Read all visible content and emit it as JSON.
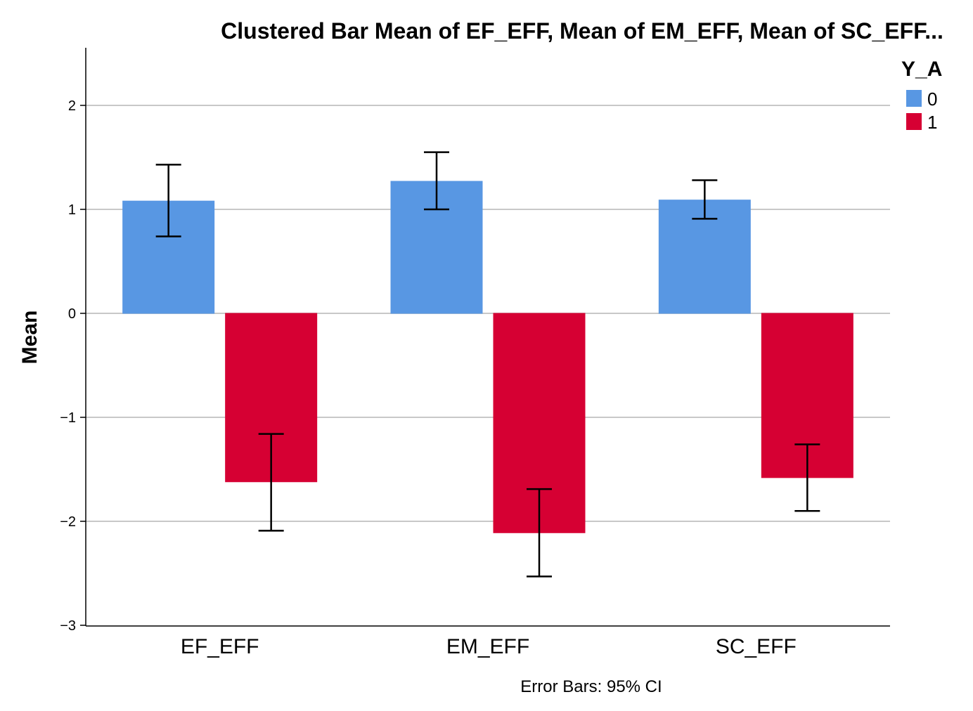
{
  "chart_data": {
    "type": "bar",
    "title": "Clustered Bar Mean of EF_EFF, Mean of EM_EFF, Mean of SC_EFF...",
    "xlabel": "",
    "ylabel": "Mean",
    "ylim": [
      -3,
      2.5
    ],
    "yticks": [
      2,
      1,
      0,
      -1,
      -2,
      -3
    ],
    "ytick_labels": [
      "2",
      "1",
      "0",
      "−1",
      "−2",
      "−3"
    ],
    "categories": [
      "EF_EFF",
      "EM_EFF",
      "SC_EFF"
    ],
    "legend_title": "Y_A",
    "legend_position": "top-right",
    "grid": true,
    "footnote": "Error Bars: 95% CI",
    "series": [
      {
        "name": "0",
        "color": "#5897e3",
        "values": [
          1.08,
          1.27,
          1.09
        ],
        "ci_low": [
          0.74,
          1.0,
          0.91
        ],
        "ci_high": [
          1.43,
          1.55,
          1.28
        ]
      },
      {
        "name": "1",
        "color": "#d60033",
        "values": [
          -1.62,
          -2.11,
          -1.58
        ],
        "ci_low": [
          -2.09,
          -2.53,
          -1.9
        ],
        "ci_high": [
          -1.16,
          -1.69,
          -1.26
        ]
      }
    ]
  }
}
